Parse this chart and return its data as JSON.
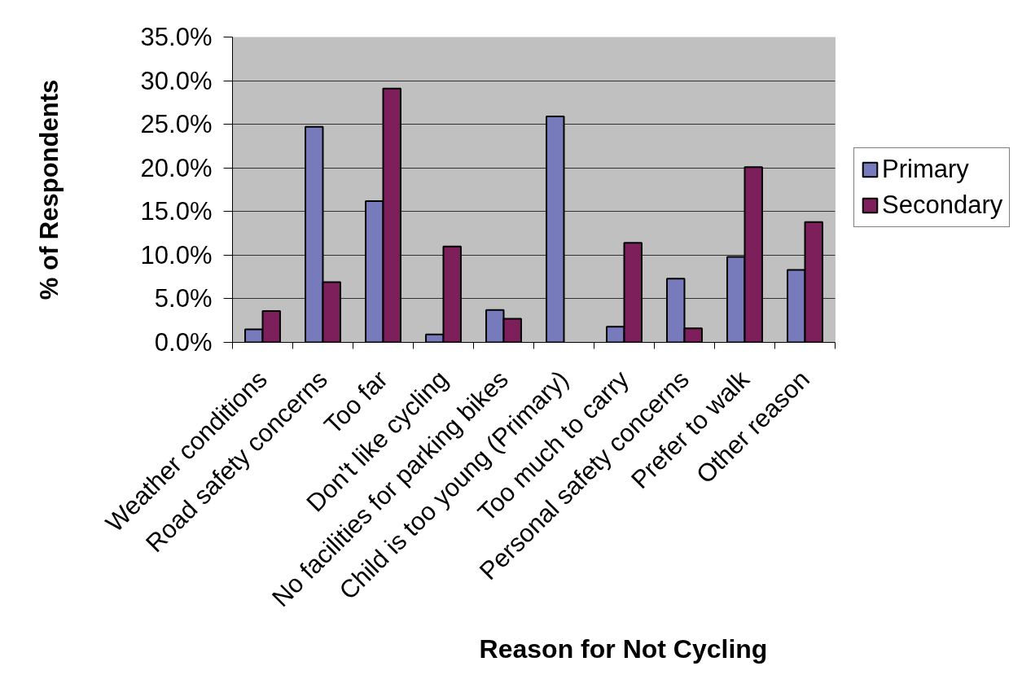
{
  "chart_data": {
    "type": "bar",
    "xlabel": "Reason for Not Cycling",
    "ylabel": "% of Respondents",
    "categories": [
      "Weather conditions",
      "Road safety concerns",
      "Too far",
      "Don't like cycling",
      "No facilities for parking bikes",
      "Child is too young (Primary)",
      "Too much to carry",
      "Personal safety concerns",
      "Prefer to walk",
      "Other reason"
    ],
    "series": [
      {
        "name": "Primary",
        "color": "#787bbb",
        "values": [
          1.5,
          24.7,
          16.2,
          0.9,
          3.7,
          25.9,
          1.8,
          7.3,
          9.8,
          8.3
        ]
      },
      {
        "name": "Secondary",
        "color": "#7d1f5a",
        "values": [
          3.6,
          6.9,
          29.1,
          11.0,
          2.7,
          null,
          11.4,
          1.6,
          20.1,
          13.8
        ]
      }
    ],
    "ylim": [
      0,
      35
    ],
    "yticks": [
      {
        "value": 0,
        "label": "0.0%"
      },
      {
        "value": 5,
        "label": "5.0%"
      },
      {
        "value": 10,
        "label": "10.0%"
      },
      {
        "value": 15,
        "label": "15.0%"
      },
      {
        "value": 20,
        "label": "20.0%"
      },
      {
        "value": 25,
        "label": "25.0%"
      },
      {
        "value": 30,
        "label": "30.0%"
      },
      {
        "value": 35,
        "label": "35.0%"
      }
    ],
    "grid": "y",
    "legend": "right"
  }
}
